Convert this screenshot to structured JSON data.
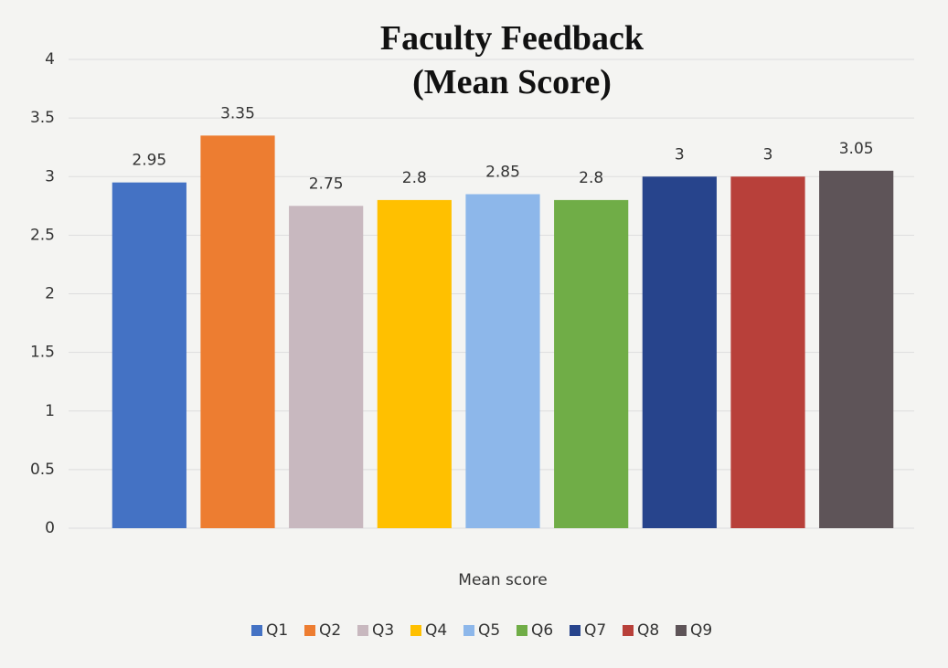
{
  "chart_data": {
    "type": "bar",
    "title": "Faculty Feedback (Mean Score)",
    "categories": [
      "Mean score"
    ],
    "series": [
      {
        "name": "Q1",
        "color": "#4472c4",
        "values": [
          2.95
        ]
      },
      {
        "name": "Q2",
        "color": "#ed7d31",
        "values": [
          3.35
        ]
      },
      {
        "name": "Q3",
        "color": "#c8b8bf",
        "values": [
          2.75
        ]
      },
      {
        "name": "Q4",
        "color": "#ffc000",
        "values": [
          2.8
        ]
      },
      {
        "name": "Q5",
        "color": "#8db7ea",
        "values": [
          2.85
        ]
      },
      {
        "name": "Q6",
        "color": "#70ad47",
        "values": [
          2.8
        ]
      },
      {
        "name": "Q7",
        "color": "#27448c",
        "values": [
          3
        ]
      },
      {
        "name": "Q8",
        "color": "#b8403a",
        "values": [
          3
        ]
      },
      {
        "name": "Q9",
        "color": "#5e5458",
        "values": [
          3.05
        ]
      }
    ],
    "ylim": [
      0,
      4
    ],
    "yticks": [
      0,
      0.5,
      1,
      1.5,
      2,
      2.5,
      3,
      3.5,
      4
    ],
    "grid": true,
    "legend": "bottom"
  }
}
